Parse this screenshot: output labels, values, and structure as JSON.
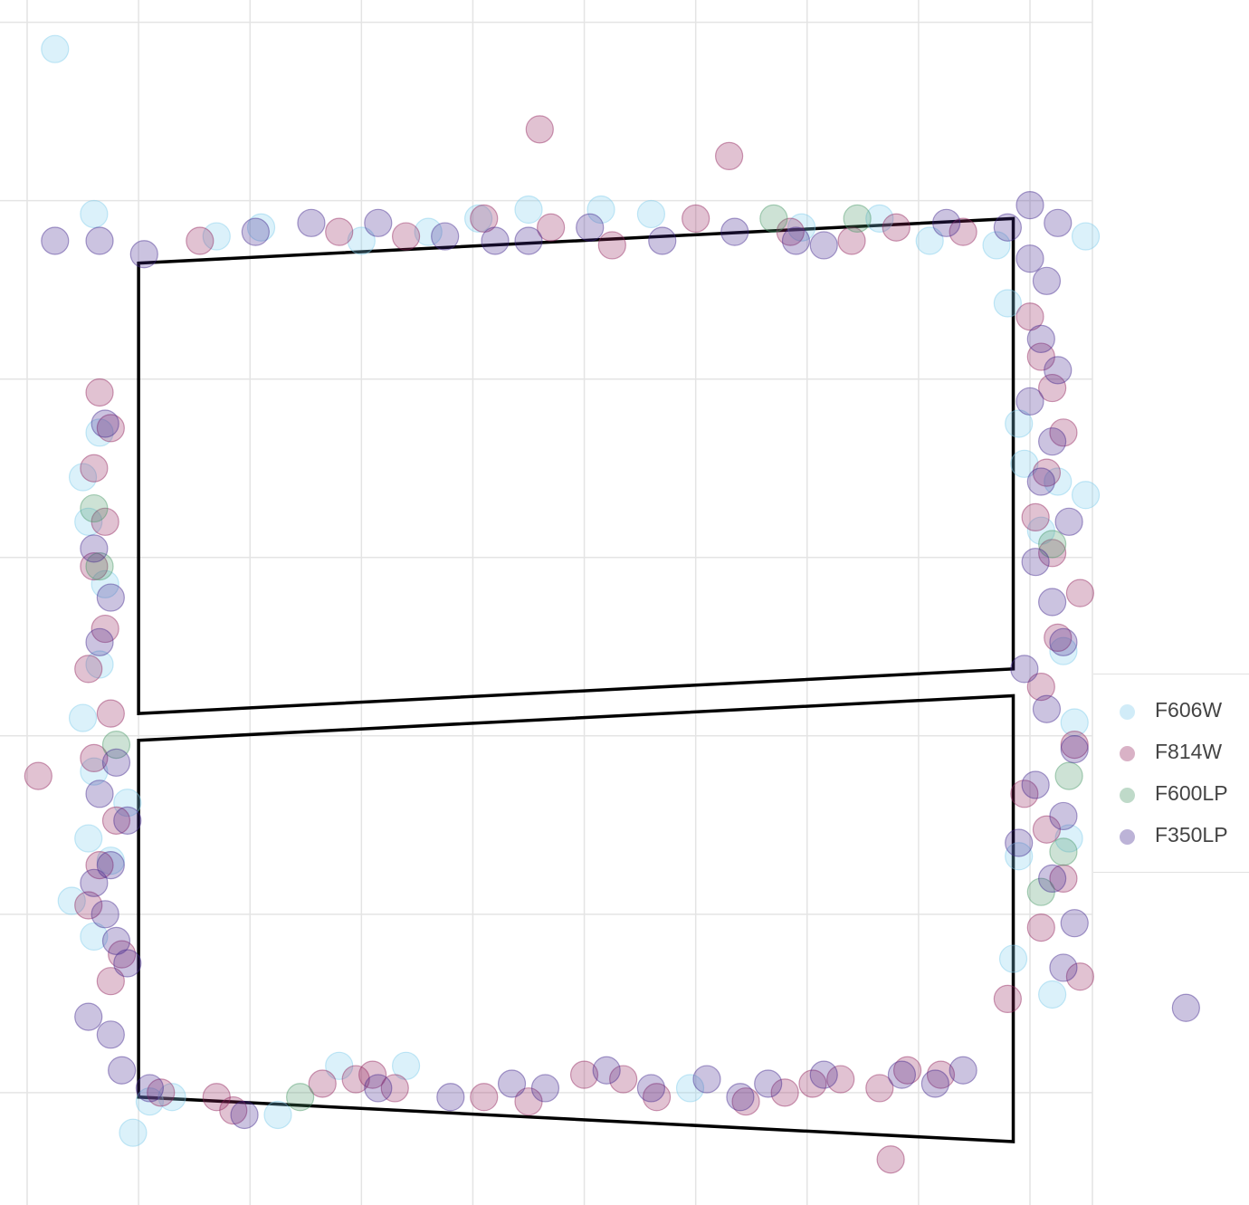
{
  "chart_data": {
    "type": "scatter",
    "title": "",
    "xlabel": "",
    "ylabel": "",
    "grid": true,
    "legend_position": "right",
    "series": [
      {
        "name": "F606W",
        "color": "#7ecbec",
        "points": [
          [
            0.5,
            11.2
          ],
          [
            1.2,
            9.35
          ],
          [
            3.4,
            9.1
          ],
          [
            4.2,
            9.2
          ],
          [
            6.0,
            9.05
          ],
          [
            7.2,
            9.15
          ],
          [
            8.1,
            9.3
          ],
          [
            9.0,
            9.4
          ],
          [
            10.3,
            9.4
          ],
          [
            11.2,
            9.35
          ],
          [
            13.9,
            9.2
          ],
          [
            15.3,
            9.3
          ],
          [
            16.2,
            9.05
          ],
          [
            17.4,
            9.0
          ],
          [
            19.0,
            9.1
          ],
          [
            1.3,
            6.9
          ],
          [
            1.0,
            6.4
          ],
          [
            1.1,
            5.9
          ],
          [
            1.4,
            5.2
          ],
          [
            1.3,
            4.3
          ],
          [
            1.0,
            3.7
          ],
          [
            1.2,
            3.1
          ],
          [
            1.8,
            2.75
          ],
          [
            1.1,
            2.35
          ],
          [
            1.5,
            2.1
          ],
          [
            0.8,
            1.65
          ],
          [
            1.2,
            1.25
          ],
          [
            1.9,
            -0.95
          ],
          [
            2.2,
            -0.6
          ],
          [
            2.6,
            -0.55
          ],
          [
            4.5,
            -0.75
          ],
          [
            5.6,
            -0.2
          ],
          [
            6.8,
            -0.2
          ],
          [
            11.9,
            -0.45
          ],
          [
            17.6,
            8.35
          ],
          [
            17.8,
            7.0
          ],
          [
            17.9,
            6.55
          ],
          [
            18.2,
            5.8
          ],
          [
            18.5,
            6.35
          ],
          [
            19.0,
            6.2
          ],
          [
            18.6,
            4.45
          ],
          [
            18.8,
            3.65
          ],
          [
            17.8,
            2.15
          ],
          [
            18.7,
            2.35
          ],
          [
            17.7,
            1.0
          ],
          [
            18.4,
            0.6
          ]
        ]
      },
      {
        "name": "F814W",
        "color": "#93245e",
        "points": [
          [
            3.1,
            9.05
          ],
          [
            5.6,
            9.15
          ],
          [
            6.8,
            9.1
          ],
          [
            8.2,
            9.3
          ],
          [
            9.4,
            9.2
          ],
          [
            10.5,
            9.0
          ],
          [
            12.0,
            9.3
          ],
          [
            13.7,
            9.15
          ],
          [
            14.8,
            9.05
          ],
          [
            15.6,
            9.2
          ],
          [
            16.8,
            9.15
          ],
          [
            9.2,
            10.3
          ],
          [
            12.6,
            10.0
          ],
          [
            1.3,
            7.35
          ],
          [
            1.5,
            6.95
          ],
          [
            1.2,
            6.5
          ],
          [
            1.4,
            5.9
          ],
          [
            1.2,
            5.4
          ],
          [
            1.4,
            4.7
          ],
          [
            1.1,
            4.25
          ],
          [
            1.5,
            3.75
          ],
          [
            1.2,
            3.25
          ],
          [
            1.6,
            2.55
          ],
          [
            1.3,
            2.05
          ],
          [
            1.1,
            1.6
          ],
          [
            1.7,
            1.05
          ],
          [
            1.5,
            0.75
          ],
          [
            0.2,
            3.05
          ],
          [
            2.4,
            -0.5
          ],
          [
            3.4,
            -0.55
          ],
          [
            3.7,
            -0.7
          ],
          [
            5.3,
            -0.4
          ],
          [
            5.9,
            -0.35
          ],
          [
            6.2,
            -0.3
          ],
          [
            6.6,
            -0.45
          ],
          [
            8.2,
            -0.55
          ],
          [
            9.0,
            -0.6
          ],
          [
            10.0,
            -0.3
          ],
          [
            10.7,
            -0.35
          ],
          [
            11.3,
            -0.55
          ],
          [
            12.9,
            -0.6
          ],
          [
            13.6,
            -0.5
          ],
          [
            14.1,
            -0.4
          ],
          [
            14.6,
            -0.35
          ],
          [
            15.3,
            -0.45
          ],
          [
            15.8,
            -0.25
          ],
          [
            16.4,
            -0.3
          ],
          [
            15.5,
            -1.25
          ],
          [
            18.0,
            8.2
          ],
          [
            18.2,
            7.75
          ],
          [
            18.4,
            7.4
          ],
          [
            18.6,
            6.9
          ],
          [
            18.3,
            6.45
          ],
          [
            18.1,
            5.95
          ],
          [
            18.4,
            5.55
          ],
          [
            18.9,
            5.1
          ],
          [
            18.5,
            4.6
          ],
          [
            18.2,
            4.05
          ],
          [
            18.8,
            3.4
          ],
          [
            17.9,
            2.85
          ],
          [
            18.3,
            2.45
          ],
          [
            18.6,
            1.9
          ],
          [
            18.2,
            1.35
          ],
          [
            18.9,
            0.8
          ],
          [
            17.6,
            0.55
          ]
        ]
      },
      {
        "name": "F600LP",
        "color": "#4a9868",
        "points": [
          [
            13.4,
            9.3
          ],
          [
            14.9,
            9.3
          ],
          [
            1.2,
            6.05
          ],
          [
            1.3,
            5.4
          ],
          [
            1.6,
            3.4
          ],
          [
            4.9,
            -0.55
          ],
          [
            18.4,
            5.65
          ],
          [
            18.7,
            3.05
          ],
          [
            18.6,
            2.2
          ],
          [
            18.2,
            1.75
          ]
        ]
      },
      {
        "name": "F350LP",
        "color": "#43278e",
        "points": [
          [
            0.5,
            9.05
          ],
          [
            1.3,
            9.05
          ],
          [
            2.1,
            8.9
          ],
          [
            4.1,
            9.15
          ],
          [
            5.1,
            9.25
          ],
          [
            6.3,
            9.25
          ],
          [
            7.5,
            9.1
          ],
          [
            8.4,
            9.05
          ],
          [
            9.0,
            9.05
          ],
          [
            10.1,
            9.2
          ],
          [
            11.4,
            9.05
          ],
          [
            12.7,
            9.15
          ],
          [
            13.8,
            9.05
          ],
          [
            14.3,
            9.0
          ],
          [
            16.5,
            9.25
          ],
          [
            17.6,
            9.2
          ],
          [
            18.0,
            9.45
          ],
          [
            18.5,
            9.25
          ],
          [
            1.4,
            7.0
          ],
          [
            1.2,
            5.6
          ],
          [
            1.5,
            5.05
          ],
          [
            1.3,
            4.55
          ],
          [
            1.6,
            3.2
          ],
          [
            1.3,
            2.85
          ],
          [
            1.8,
            2.55
          ],
          [
            1.5,
            2.05
          ],
          [
            1.2,
            1.85
          ],
          [
            1.4,
            1.5
          ],
          [
            1.6,
            1.2
          ],
          [
            1.8,
            0.95
          ],
          [
            1.1,
            0.35
          ],
          [
            1.5,
            0.15
          ],
          [
            1.7,
            -0.25
          ],
          [
            2.2,
            -0.45
          ],
          [
            3.9,
            -0.75
          ],
          [
            6.3,
            -0.45
          ],
          [
            7.6,
            -0.55
          ],
          [
            8.7,
            -0.4
          ],
          [
            9.3,
            -0.45
          ],
          [
            10.4,
            -0.25
          ],
          [
            11.2,
            -0.45
          ],
          [
            12.2,
            -0.35
          ],
          [
            12.8,
            -0.55
          ],
          [
            13.3,
            -0.4
          ],
          [
            14.3,
            -0.3
          ],
          [
            15.7,
            -0.3
          ],
          [
            16.3,
            -0.4
          ],
          [
            16.8,
            -0.25
          ],
          [
            18.0,
            8.85
          ],
          [
            18.3,
            8.6
          ],
          [
            18.2,
            7.95
          ],
          [
            18.5,
            7.6
          ],
          [
            18.0,
            7.25
          ],
          [
            18.4,
            6.8
          ],
          [
            18.2,
            6.35
          ],
          [
            18.7,
            5.9
          ],
          [
            18.1,
            5.45
          ],
          [
            18.4,
            5.0
          ],
          [
            18.6,
            4.55
          ],
          [
            17.9,
            4.25
          ],
          [
            18.3,
            3.8
          ],
          [
            18.8,
            3.35
          ],
          [
            18.1,
            2.95
          ],
          [
            18.6,
            2.6
          ],
          [
            17.8,
            2.3
          ],
          [
            18.4,
            1.9
          ],
          [
            18.8,
            1.4
          ],
          [
            18.6,
            0.9
          ],
          [
            20.8,
            0.45
          ]
        ]
      }
    ],
    "shapes": [
      {
        "type": "polygon",
        "points": [
          [
            2.0,
            8.8
          ],
          [
            17.7,
            9.3
          ],
          [
            17.7,
            4.25
          ],
          [
            2.0,
            3.75
          ]
        ]
      },
      {
        "type": "polygon",
        "points": [
          [
            2.0,
            3.45
          ],
          [
            17.7,
            3.95
          ],
          [
            17.7,
            -1.05
          ],
          [
            2.0,
            -0.55
          ]
        ]
      }
    ],
    "xlim": [
      0.0,
      22.5
    ],
    "ylim": [
      -1.75,
      11.75
    ],
    "x_gridlines": [
      0,
      2,
      4,
      6,
      8,
      10,
      12,
      14,
      16,
      18,
      20
    ],
    "y_gridlines": [
      -0.5,
      1.5,
      3.5,
      5.5,
      7.5,
      9.5,
      11.5
    ],
    "tick_labels_shown": false
  }
}
